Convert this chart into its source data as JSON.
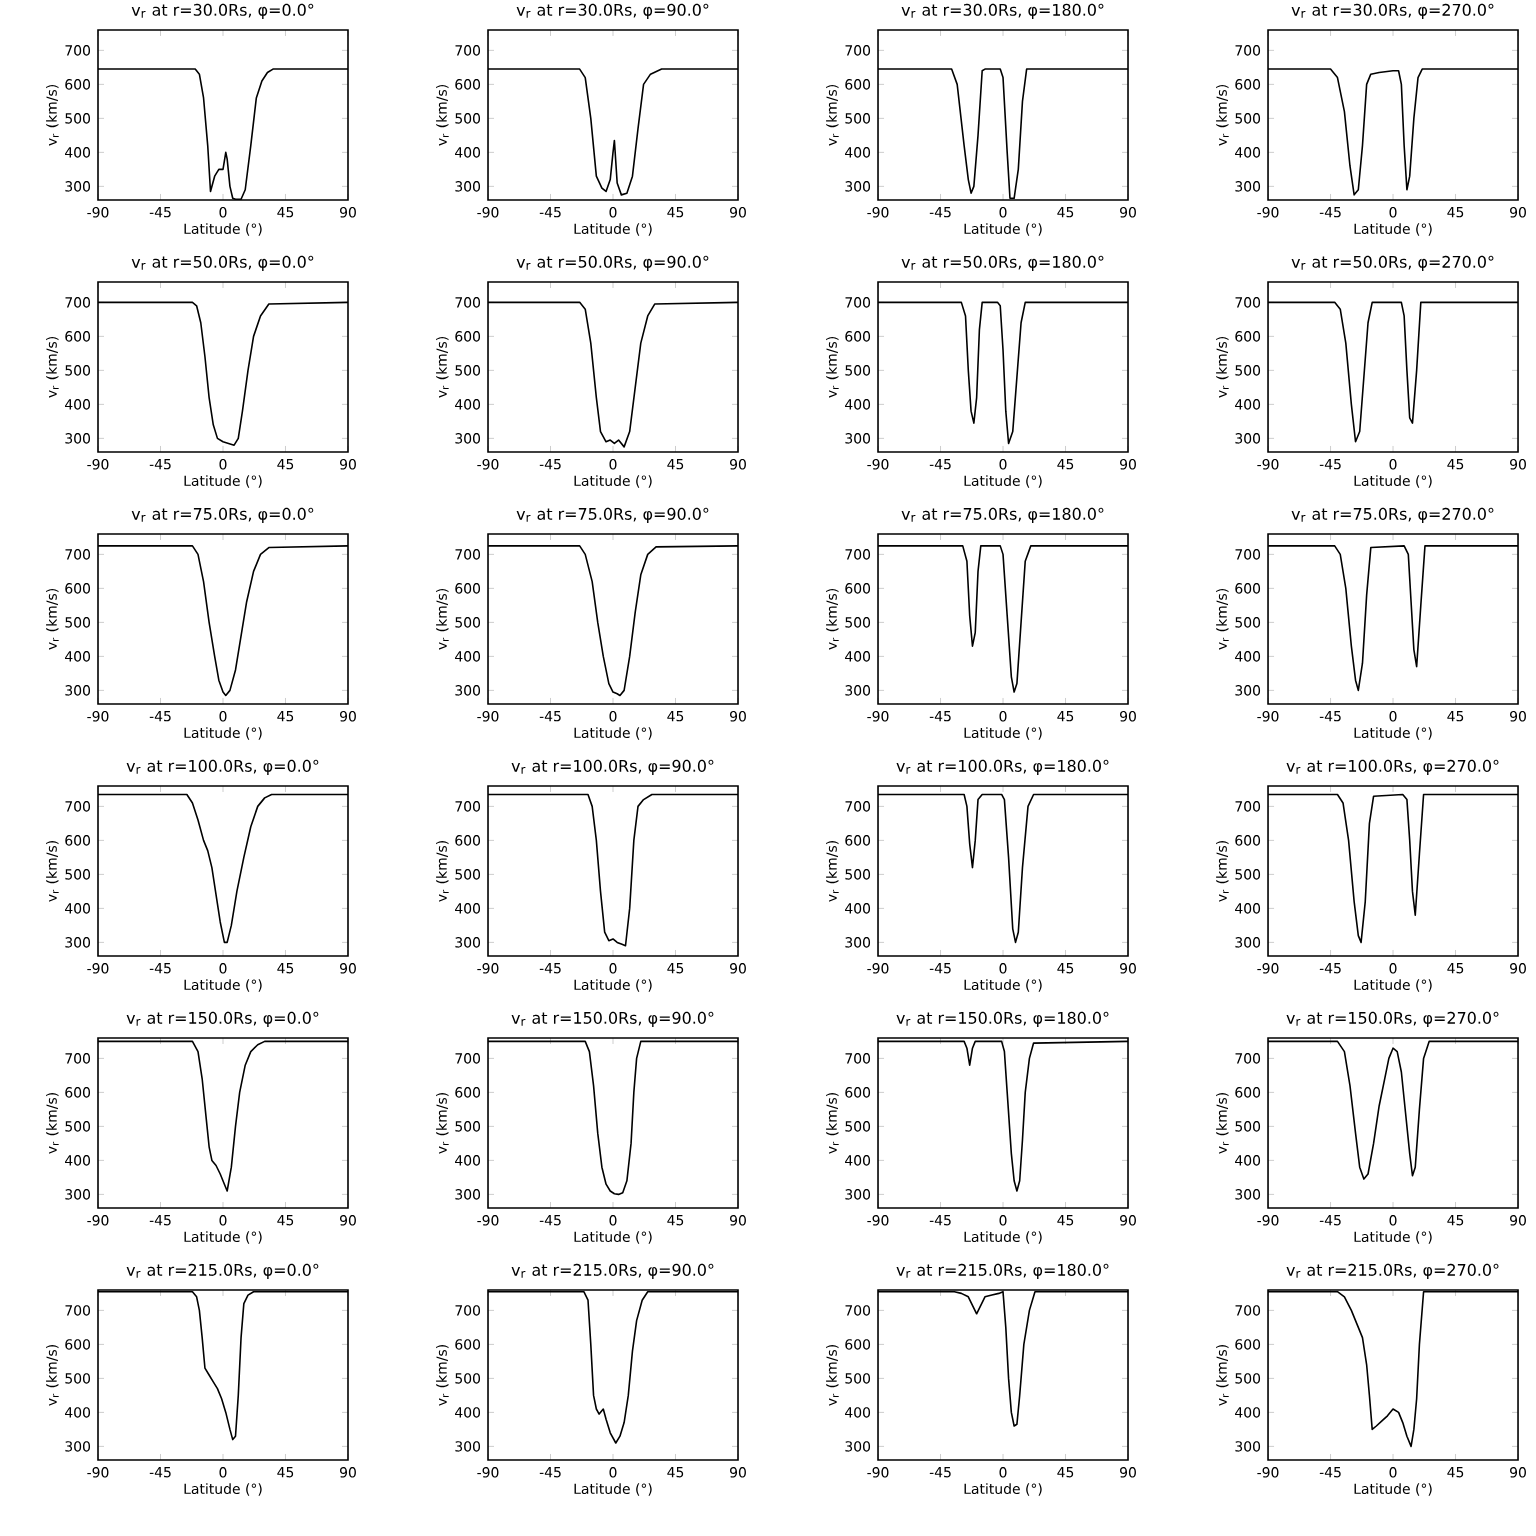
{
  "chart_data": [
    {
      "type": "line",
      "title": "v$_{r}$ at r=30.0Rs, φ=0.0°",
      "xlabel": "Latitude (°)",
      "ylabel": "v$_{r}$ (km/s)",
      "xlim": [
        -90,
        90
      ],
      "ylim": [
        260,
        760
      ],
      "xticks": [
        -90,
        -45,
        0,
        45,
        90
      ],
      "yticks": [
        300,
        400,
        500,
        600,
        700
      ],
      "color": "#000000",
      "x": [
        -90,
        -20,
        -17,
        -14,
        -11,
        -9,
        -6,
        -3,
        0,
        2,
        3,
        5,
        7,
        9,
        13,
        16,
        20,
        24,
        28,
        32,
        36,
        90
      ],
      "values": [
        645,
        645,
        630,
        560,
        420,
        285,
        330,
        350,
        350,
        400,
        380,
        300,
        265,
        262,
        262,
        290,
        420,
        560,
        610,
        635,
        645,
        645
      ]
    },
    {
      "type": "line",
      "title": "v$_{r}$ at r=30.0Rs, φ=90.0°",
      "xlabel": "Latitude (°)",
      "ylabel": "v$_{r}$ (km/s)",
      "xlim": [
        -90,
        90
      ],
      "ylim": [
        260,
        760
      ],
      "xticks": [
        -90,
        -45,
        0,
        45,
        90
      ],
      "yticks": [
        300,
        400,
        500,
        600,
        700
      ],
      "color": "#000000",
      "x": [
        -90,
        -24,
        -20,
        -16,
        -12,
        -8,
        -5,
        -2,
        0,
        1,
        3,
        6,
        10,
        14,
        18,
        22,
        27,
        35,
        90
      ],
      "values": [
        645,
        645,
        620,
        500,
        330,
        295,
        285,
        320,
        400,
        435,
        310,
        275,
        280,
        330,
        470,
        600,
        630,
        645,
        645
      ]
    },
    {
      "type": "line",
      "title": "v$_{r}$ at r=30.0Rs, φ=180.0°",
      "xlabel": "Latitude (°)",
      "ylabel": "v$_{r}$ (km/s)",
      "xlim": [
        -90,
        90
      ],
      "ylim": [
        260,
        760
      ],
      "xticks": [
        -90,
        -45,
        0,
        45,
        90
      ],
      "yticks": [
        300,
        400,
        500,
        600,
        700
      ],
      "color": "#000000",
      "x": [
        -90,
        -37,
        -33,
        -28,
        -25,
        -23,
        -21,
        -18,
        -15,
        -13,
        -2,
        0,
        3,
        5,
        8,
        11,
        14,
        17,
        90
      ],
      "values": [
        645,
        645,
        600,
        420,
        320,
        280,
        300,
        450,
        640,
        645,
        645,
        620,
        400,
        265,
        265,
        350,
        550,
        645,
        645
      ]
    },
    {
      "type": "line",
      "title": "v$_{r}$ at r=30.0Rs, φ=270.0°",
      "xlabel": "Latitude (°)",
      "ylabel": "v$_{r}$ (km/s)",
      "xlim": [
        -90,
        90
      ],
      "ylim": [
        260,
        760
      ],
      "xticks": [
        -90,
        -45,
        0,
        45,
        90
      ],
      "yticks": [
        300,
        400,
        500,
        600,
        700
      ],
      "color": "#000000",
      "x": [
        -90,
        -45,
        -40,
        -35,
        -31,
        -28,
        -25,
        -22,
        -19,
        -16,
        -10,
        0,
        4,
        6,
        8,
        10,
        12,
        15,
        18,
        21,
        90
      ],
      "values": [
        645,
        645,
        620,
        520,
        360,
        275,
        290,
        420,
        600,
        630,
        635,
        640,
        640,
        600,
        420,
        290,
        330,
        500,
        620,
        645,
        645
      ]
    },
    {
      "type": "line",
      "title": "v$_{r}$ at r=50.0Rs, φ=0.0°",
      "xlabel": "Latitude (°)",
      "ylabel": "v$_{r}$ (km/s)",
      "xlim": [
        -90,
        90
      ],
      "ylim": [
        260,
        760
      ],
      "xticks": [
        -90,
        -45,
        0,
        45,
        90
      ],
      "yticks": [
        300,
        400,
        500,
        600,
        700
      ],
      "color": "#000000",
      "x": [
        -90,
        -22,
        -19,
        -16,
        -13,
        -10,
        -7,
        -4,
        0,
        4,
        8,
        11,
        14,
        18,
        22,
        27,
        33,
        90
      ],
      "values": [
        700,
        700,
        690,
        640,
        540,
        420,
        340,
        300,
        290,
        285,
        280,
        300,
        380,
        500,
        600,
        660,
        695,
        700
      ]
    },
    {
      "type": "line",
      "title": "v$_{r}$ at r=50.0Rs, φ=90.0°",
      "xlabel": "Latitude (°)",
      "ylabel": "v$_{r}$ (km/s)",
      "xlim": [
        -90,
        90
      ],
      "ylim": [
        260,
        760
      ],
      "xticks": [
        -90,
        -45,
        0,
        45,
        90
      ],
      "yticks": [
        300,
        400,
        500,
        600,
        700
      ],
      "color": "#000000",
      "x": [
        -90,
        -24,
        -20,
        -16,
        -12,
        -9,
        -5,
        -2,
        1,
        4,
        8,
        12,
        16,
        20,
        25,
        30,
        90
      ],
      "values": [
        700,
        700,
        680,
        580,
        420,
        320,
        290,
        295,
        285,
        295,
        275,
        320,
        450,
        580,
        660,
        695,
        700
      ]
    },
    {
      "type": "line",
      "title": "v$_{r}$ at r=50.0Rs, φ=180.0°",
      "xlabel": "Latitude (°)",
      "ylabel": "v$_{r}$ (km/s)",
      "xlim": [
        -90,
        90
      ],
      "ylim": [
        260,
        760
      ],
      "xticks": [
        -90,
        -45,
        0,
        45,
        90
      ],
      "yticks": [
        300,
        400,
        500,
        600,
        700
      ],
      "color": "#000000",
      "x": [
        -90,
        -30,
        -27,
        -25,
        -23,
        -21,
        -19,
        -17,
        -15,
        -4,
        -2,
        0,
        2,
        4,
        7,
        10,
        13,
        16,
        90
      ],
      "values": [
        700,
        700,
        660,
        500,
        380,
        345,
        420,
        620,
        700,
        700,
        690,
        560,
        380,
        285,
        320,
        480,
        640,
        700,
        700
      ]
    },
    {
      "type": "line",
      "title": "v$_{r}$ at r=50.0Rs, φ=270.0°",
      "xlabel": "Latitude (°)",
      "ylabel": "v$_{r}$ (km/s)",
      "xlim": [
        -90,
        90
      ],
      "ylim": [
        260,
        760
      ],
      "xticks": [
        -90,
        -45,
        0,
        45,
        90
      ],
      "yticks": [
        300,
        400,
        500,
        600,
        700
      ],
      "color": "#000000",
      "x": [
        -90,
        -42,
        -38,
        -34,
        -30,
        -27,
        -24,
        -21,
        -18,
        -15,
        6,
        8,
        10,
        12,
        14,
        17,
        20,
        90
      ],
      "values": [
        700,
        700,
        680,
        580,
        400,
        290,
        320,
        480,
        640,
        700,
        700,
        660,
        500,
        360,
        345,
        500,
        700,
        700
      ]
    },
    {
      "type": "line",
      "title": "v$_{r}$ at r=75.0Rs, φ=0.0°",
      "xlabel": "Latitude (°)",
      "ylabel": "v$_{r}$ (km/s)",
      "xlim": [
        -90,
        90
      ],
      "ylim": [
        260,
        760
      ],
      "xticks": [
        -90,
        -45,
        0,
        45,
        90
      ],
      "yticks": [
        300,
        400,
        500,
        600,
        700
      ],
      "color": "#000000",
      "x": [
        -90,
        -22,
        -18,
        -14,
        -10,
        -6,
        -3,
        0,
        2,
        5,
        9,
        13,
        17,
        22,
        27,
        33,
        90
      ],
      "values": [
        725,
        725,
        700,
        620,
        500,
        400,
        330,
        295,
        285,
        300,
        360,
        460,
        560,
        650,
        700,
        720,
        725
      ]
    },
    {
      "type": "line",
      "title": "v$_{r}$ at r=75.0Rs, φ=90.0°",
      "xlabel": "Latitude (°)",
      "ylabel": "v$_{r}$ (km/s)",
      "xlim": [
        -90,
        90
      ],
      "ylim": [
        260,
        760
      ],
      "xticks": [
        -90,
        -45,
        0,
        45,
        90
      ],
      "yticks": [
        300,
        400,
        500,
        600,
        700
      ],
      "color": "#000000",
      "x": [
        -90,
        -24,
        -20,
        -15,
        -11,
        -7,
        -3,
        0,
        3,
        5,
        8,
        12,
        16,
        20,
        25,
        31,
        90
      ],
      "values": [
        725,
        725,
        700,
        620,
        500,
        400,
        320,
        295,
        290,
        285,
        300,
        400,
        530,
        640,
        700,
        722,
        725
      ]
    },
    {
      "type": "line",
      "title": "v$_{r}$ at r=75.0Rs, φ=180.0°",
      "xlabel": "Latitude (°)",
      "ylabel": "v$_{r}$ (km/s)",
      "xlim": [
        -90,
        90
      ],
      "ylim": [
        260,
        760
      ],
      "xticks": [
        -90,
        -45,
        0,
        45,
        90
      ],
      "yticks": [
        300,
        400,
        500,
        600,
        700
      ],
      "color": "#000000",
      "x": [
        -90,
        -29,
        -26,
        -24,
        -22,
        -20,
        -18,
        -16,
        -2,
        0,
        3,
        6,
        8,
        10,
        13,
        16,
        20,
        90
      ],
      "values": [
        725,
        725,
        680,
        520,
        430,
        470,
        650,
        725,
        725,
        700,
        520,
        340,
        295,
        320,
        500,
        680,
        725,
        725
      ]
    },
    {
      "type": "line",
      "title": "v$_{r}$ at r=75.0Rs, φ=270.0°",
      "xlabel": "Latitude (°)",
      "ylabel": "v$_{r}$ (km/s)",
      "xlim": [
        -90,
        90
      ],
      "ylim": [
        260,
        760
      ],
      "xticks": [
        -90,
        -45,
        0,
        45,
        90
      ],
      "yticks": [
        300,
        400,
        500,
        600,
        700
      ],
      "color": "#000000",
      "x": [
        -90,
        -42,
        -38,
        -34,
        -30,
        -27,
        -25,
        -22,
        -19,
        -16,
        8,
        11,
        13,
        15,
        17,
        20,
        23,
        90
      ],
      "values": [
        725,
        725,
        700,
        600,
        430,
        330,
        300,
        380,
        580,
        720,
        725,
        700,
        560,
        420,
        370,
        550,
        725,
        725
      ]
    },
    {
      "type": "line",
      "title": "v$_{r}$ at r=100.0Rs, φ=0.0°",
      "xlabel": "Latitude (°)",
      "ylabel": "v$_{r}$ (km/s)",
      "xlim": [
        -90,
        90
      ],
      "ylim": [
        260,
        760
      ],
      "xticks": [
        -90,
        -45,
        0,
        45,
        90
      ],
      "yticks": [
        300,
        400,
        500,
        600,
        700
      ],
      "color": "#000000",
      "x": [
        -90,
        -26,
        -22,
        -18,
        -14,
        -11,
        -8,
        -5,
        -2,
        1,
        3,
        6,
        10,
        15,
        20,
        25,
        30,
        35,
        90
      ],
      "values": [
        735,
        735,
        710,
        660,
        600,
        570,
        520,
        440,
        360,
        300,
        300,
        350,
        450,
        550,
        640,
        700,
        725,
        735,
        735
      ]
    },
    {
      "type": "line",
      "title": "v$_{r}$ at r=100.0Rs, φ=90.0°",
      "xlabel": "Latitude (°)",
      "ylabel": "v$_{r}$ (km/s)",
      "xlim": [
        -90,
        90
      ],
      "ylim": [
        260,
        760
      ],
      "xticks": [
        -90,
        -45,
        0,
        45,
        90
      ],
      "yticks": [
        300,
        400,
        500,
        600,
        700
      ],
      "color": "#000000",
      "x": [
        -90,
        -18,
        -15,
        -12,
        -9,
        -6,
        -3,
        0,
        3,
        6,
        9,
        12,
        15,
        18,
        22,
        28,
        90
      ],
      "values": [
        735,
        735,
        700,
        600,
        450,
        330,
        305,
        310,
        300,
        295,
        290,
        400,
        600,
        700,
        720,
        735,
        735
      ]
    },
    {
      "type": "line",
      "title": "v$_{r}$ at r=100.0Rs, φ=180.0°",
      "xlabel": "Latitude (°)",
      "ylabel": "v$_{r}$ (km/s)",
      "xlim": [
        -90,
        90
      ],
      "ylim": [
        260,
        760
      ],
      "xticks": [
        -90,
        -45,
        0,
        45,
        90
      ],
      "yticks": [
        300,
        400,
        500,
        600,
        700
      ],
      "color": "#000000",
      "x": [
        -90,
        -28,
        -26,
        -24,
        -22,
        -20,
        -18,
        -15,
        -1,
        1,
        4,
        7,
        9,
        11,
        14,
        18,
        22,
        90
      ],
      "values": [
        735,
        735,
        700,
        590,
        520,
        600,
        720,
        735,
        735,
        720,
        550,
        340,
        300,
        330,
        520,
        700,
        735,
        735
      ]
    },
    {
      "type": "line",
      "title": "v$_{r}$ at r=100.0Rs, φ=270.0°",
      "xlabel": "Latitude (°)",
      "ylabel": "v$_{r}$ (km/s)",
      "xlim": [
        -90,
        90
      ],
      "ylim": [
        260,
        760
      ],
      "xticks": [
        -90,
        -45,
        0,
        45,
        90
      ],
      "yticks": [
        300,
        400,
        500,
        600,
        700
      ],
      "color": "#000000",
      "x": [
        -90,
        -40,
        -36,
        -32,
        -28,
        -25,
        -23,
        -20,
        -17,
        -14,
        7,
        10,
        12,
        14,
        16,
        19,
        22,
        90
      ],
      "values": [
        735,
        735,
        710,
        600,
        420,
        320,
        300,
        420,
        650,
        730,
        735,
        720,
        600,
        450,
        380,
        560,
        735,
        735
      ]
    },
    {
      "type": "line",
      "title": "v$_{r}$ at r=150.0Rs, φ=0.0°",
      "xlabel": "Latitude (°)",
      "ylabel": "v$_{r}$ (km/s)",
      "xlim": [
        -90,
        90
      ],
      "ylim": [
        260,
        760
      ],
      "xticks": [
        -90,
        -45,
        0,
        45,
        90
      ],
      "yticks": [
        300,
        400,
        500,
        600,
        700
      ],
      "color": "#000000",
      "x": [
        -90,
        -22,
        -18,
        -15,
        -12,
        -10,
        -8,
        -5,
        -2,
        1,
        3,
        6,
        9,
        12,
        16,
        20,
        25,
        30,
        90
      ],
      "values": [
        750,
        750,
        720,
        640,
        520,
        440,
        400,
        385,
        360,
        330,
        310,
        380,
        500,
        600,
        680,
        720,
        740,
        750,
        750
      ]
    },
    {
      "type": "line",
      "title": "v$_{r}$ at r=150.0Rs, φ=90.0°",
      "xlabel": "Latitude (°)",
      "ylabel": "v$_{r}$ (km/s)",
      "xlim": [
        -90,
        90
      ],
      "ylim": [
        260,
        760
      ],
      "xticks": [
        -90,
        -45,
        0,
        45,
        90
      ],
      "yticks": [
        300,
        400,
        500,
        600,
        700
      ],
      "color": "#000000",
      "x": [
        -90,
        -20,
        -17,
        -14,
        -11,
        -8,
        -5,
        -2,
        1,
        4,
        7,
        10,
        13,
        15,
        17,
        20,
        90
      ],
      "values": [
        750,
        750,
        720,
        620,
        480,
        380,
        330,
        310,
        302,
        300,
        305,
        340,
        450,
        600,
        700,
        750,
        750
      ]
    },
    {
      "type": "line",
      "title": "v$_{r}$ at r=150.0Rs, φ=180.0°",
      "xlabel": "Latitude (°)",
      "ylabel": "v$_{r}$ (km/s)",
      "xlim": [
        -90,
        90
      ],
      "ylim": [
        260,
        760
      ],
      "xticks": [
        -90,
        -45,
        0,
        45,
        90
      ],
      "yticks": [
        300,
        400,
        500,
        600,
        700
      ],
      "color": "#000000",
      "x": [
        -90,
        -28,
        -26,
        -24,
        -22,
        -20,
        -1,
        1,
        3,
        6,
        8,
        10,
        12,
        14,
        16,
        19,
        22,
        90
      ],
      "values": [
        750,
        750,
        730,
        680,
        730,
        750,
        750,
        720,
        600,
        420,
        340,
        310,
        340,
        460,
        600,
        700,
        745,
        750
      ]
    },
    {
      "type": "line",
      "title": "v$_{r}$ at r=150.0Rs, φ=270.0°",
      "xlabel": "Latitude (°)",
      "ylabel": "v$_{r}$ (km/s)",
      "xlim": [
        -90,
        90
      ],
      "ylim": [
        260,
        760
      ],
      "xticks": [
        -90,
        -45,
        0,
        45,
        90
      ],
      "yticks": [
        300,
        400,
        500,
        600,
        700
      ],
      "color": "#000000",
      "x": [
        -90,
        -40,
        -35,
        -31,
        -27,
        -24,
        -21,
        -18,
        -14,
        -10,
        -6,
        -3,
        0,
        3,
        6,
        9,
        12,
        14,
        16,
        19,
        22,
        26,
        90
      ],
      "values": [
        750,
        750,
        720,
        620,
        480,
        380,
        345,
        360,
        450,
        560,
        640,
        700,
        730,
        720,
        660,
        540,
        420,
        355,
        380,
        550,
        700,
        750,
        750
      ]
    },
    {
      "type": "line",
      "title": "v$_{r}$ at r=215.0Rs, φ=0.0°",
      "xlabel": "Latitude (°)",
      "ylabel": "v$_{r}$ (km/s)",
      "xlim": [
        -90,
        90
      ],
      "ylim": [
        260,
        760
      ],
      "xticks": [
        -90,
        -45,
        0,
        45,
        90
      ],
      "yticks": [
        300,
        400,
        500,
        600,
        700
      ],
      "color": "#000000",
      "x": [
        -90,
        -22,
        -19,
        -17,
        -15,
        -13,
        -10,
        -7,
        -4,
        -1,
        2,
        5,
        7,
        9,
        11,
        13,
        15,
        18,
        22,
        90
      ],
      "values": [
        755,
        755,
        740,
        700,
        620,
        530,
        510,
        490,
        470,
        440,
        400,
        350,
        320,
        330,
        450,
        620,
        720,
        745,
        755,
        755
      ]
    },
    {
      "type": "line",
      "title": "v$_{r}$ at r=215.0Rs, φ=90.0°",
      "xlabel": "Latitude (°)",
      "ylabel": "v$_{r}$ (km/s)",
      "xlim": [
        -90,
        90
      ],
      "ylim": [
        260,
        760
      ],
      "xticks": [
        -90,
        -45,
        0,
        45,
        90
      ],
      "yticks": [
        300,
        400,
        500,
        600,
        700
      ],
      "color": "#000000",
      "x": [
        -90,
        -21,
        -18,
        -16,
        -14,
        -12,
        -10,
        -7,
        -5,
        -2,
        2,
        5,
        8,
        11,
        14,
        17,
        21,
        25,
        90
      ],
      "values": [
        755,
        755,
        730,
        600,
        450,
        410,
        395,
        410,
        380,
        340,
        310,
        330,
        370,
        450,
        580,
        670,
        730,
        755,
        755
      ]
    },
    {
      "type": "line",
      "title": "v$_{r}$ at r=215.0Rs, φ=180.0°",
      "xlabel": "Latitude (°)",
      "ylabel": "v$_{r}$ (km/s)",
      "xlim": [
        -90,
        90
      ],
      "ylim": [
        260,
        760
      ],
      "xticks": [
        -90,
        -45,
        0,
        45,
        90
      ],
      "yticks": [
        300,
        400,
        500,
        600,
        700
      ],
      "color": "#000000",
      "x": [
        -90,
        -35,
        -30,
        -25,
        -22,
        -19,
        -16,
        -13,
        -8,
        -3,
        0,
        2,
        4,
        6,
        8,
        10,
        12,
        15,
        19,
        23,
        90
      ],
      "values": [
        755,
        755,
        750,
        740,
        715,
        690,
        715,
        740,
        745,
        750,
        755,
        650,
        500,
        400,
        360,
        365,
        450,
        600,
        700,
        755,
        755
      ]
    },
    {
      "type": "line",
      "title": "v$_{r}$ at r=215.0Rs, φ=270.0°",
      "xlabel": "Latitude (°)",
      "ylabel": "v$_{r}$ (km/s)",
      "xlim": [
        -90,
        90
      ],
      "ylim": [
        260,
        760
      ],
      "xticks": [
        -90,
        -45,
        0,
        45,
        90
      ],
      "yticks": [
        300,
        400,
        500,
        600,
        700
      ],
      "color": "#000000",
      "x": [
        -90,
        -40,
        -35,
        -30,
        -25,
        -22,
        -19,
        -17,
        -15,
        -12,
        -8,
        -4,
        0,
        4,
        7,
        10,
        13,
        15,
        17,
        19,
        22,
        90
      ],
      "values": [
        755,
        755,
        740,
        700,
        650,
        620,
        540,
        450,
        350,
        360,
        375,
        390,
        410,
        400,
        370,
        330,
        300,
        350,
        440,
        600,
        755,
        755
      ]
    }
  ]
}
